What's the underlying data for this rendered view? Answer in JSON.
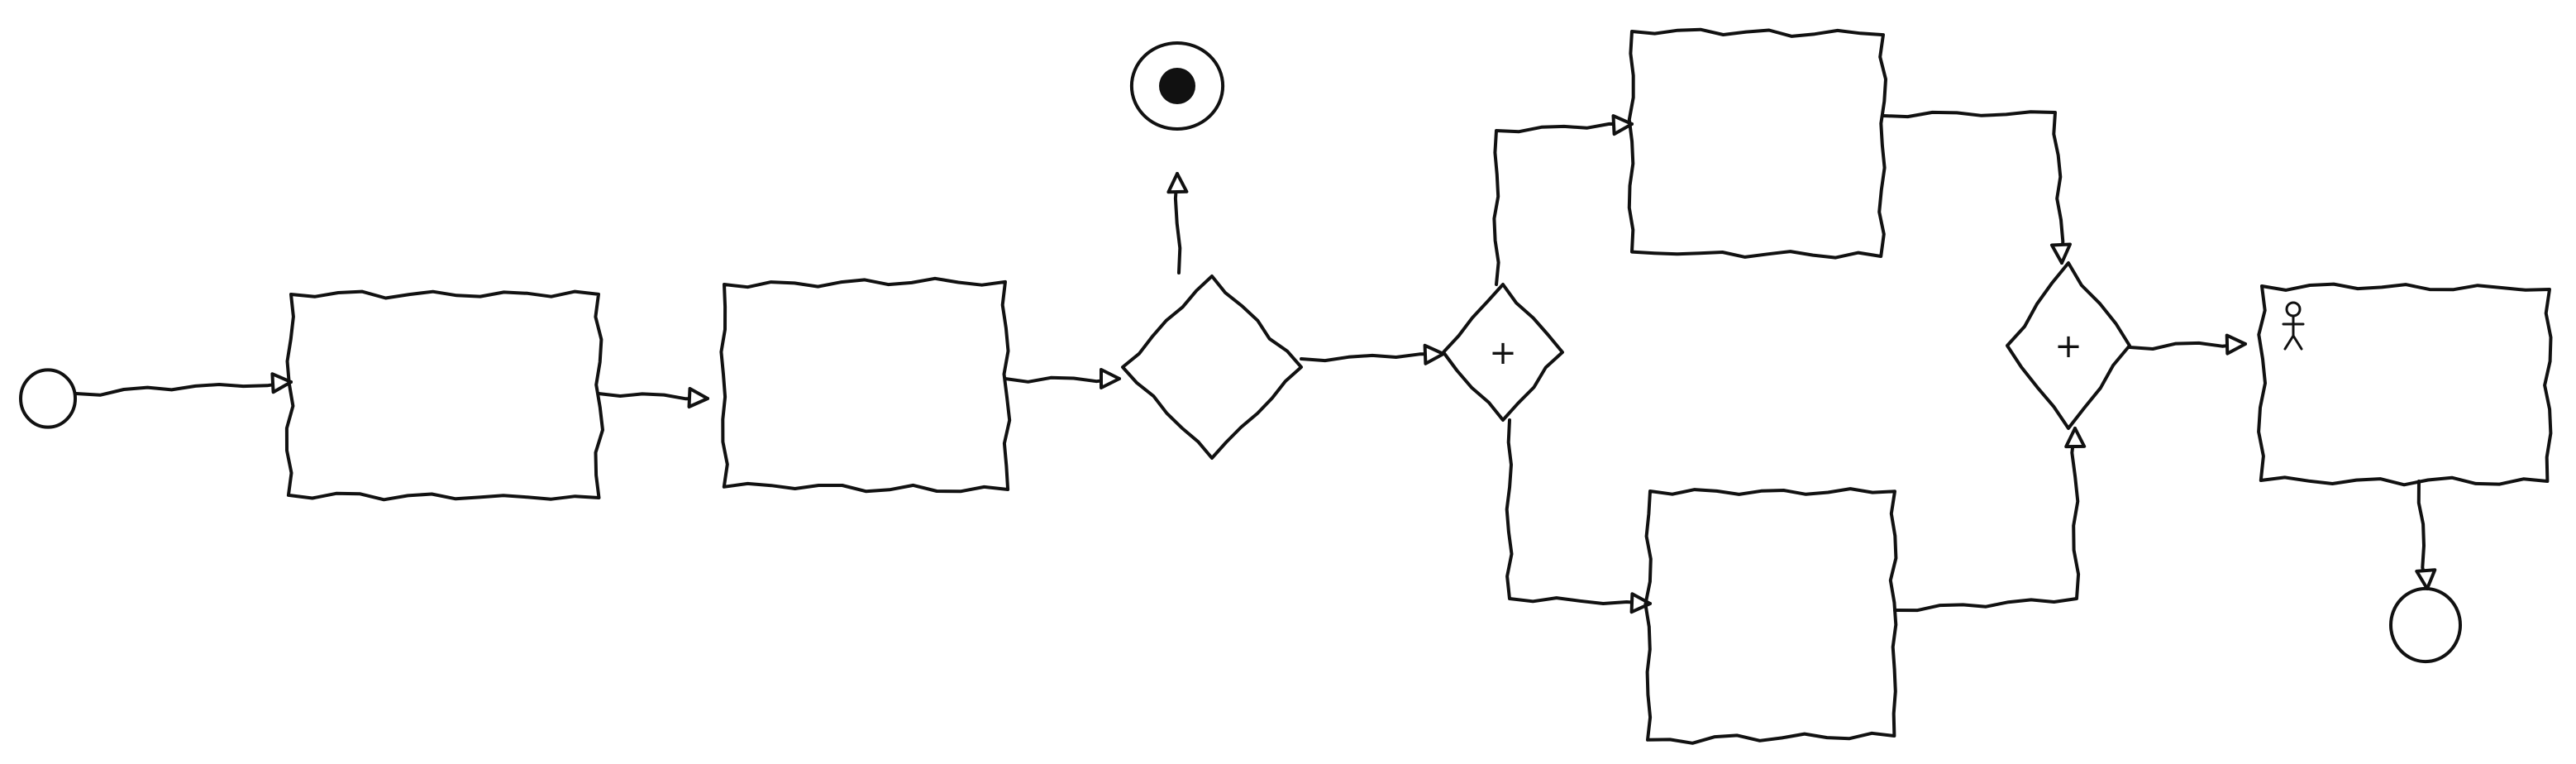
{
  "diagram": {
    "kind": "hand-drawn BPMN process sketch",
    "ink_color": "#111111",
    "background": "#ffffff",
    "nodes": [
      {
        "id": "start-event",
        "type": "start-event",
        "label": ""
      },
      {
        "id": "task-1",
        "type": "task",
        "label": ""
      },
      {
        "id": "task-2",
        "type": "task",
        "label": ""
      },
      {
        "id": "exclusive-gateway",
        "type": "exclusive-gateway",
        "label": ""
      },
      {
        "id": "terminate-end-event",
        "type": "terminate-end-event",
        "label": ""
      },
      {
        "id": "parallel-split-gateway",
        "type": "parallel-gateway",
        "marker": "+"
      },
      {
        "id": "task-upper",
        "type": "task",
        "label": ""
      },
      {
        "id": "task-lower",
        "type": "task",
        "label": ""
      },
      {
        "id": "parallel-join-gateway",
        "type": "parallel-gateway",
        "marker": "+"
      },
      {
        "id": "user-task",
        "type": "user-task",
        "icon": "person-icon",
        "label": ""
      },
      {
        "id": "end-event",
        "type": "end-event",
        "label": ""
      }
    ],
    "edges": [
      {
        "from": "start-event",
        "to": "task-1"
      },
      {
        "from": "task-1",
        "to": "task-2"
      },
      {
        "from": "task-2",
        "to": "exclusive-gateway"
      },
      {
        "from": "exclusive-gateway",
        "to": "terminate-end-event"
      },
      {
        "from": "exclusive-gateway",
        "to": "parallel-split-gateway"
      },
      {
        "from": "parallel-split-gateway",
        "to": "task-upper"
      },
      {
        "from": "parallel-split-gateway",
        "to": "task-lower"
      },
      {
        "from": "task-upper",
        "to": "parallel-join-gateway"
      },
      {
        "from": "task-lower",
        "to": "parallel-join-gateway"
      },
      {
        "from": "parallel-join-gateway",
        "to": "user-task"
      },
      {
        "from": "user-task",
        "to": "end-event"
      }
    ]
  }
}
